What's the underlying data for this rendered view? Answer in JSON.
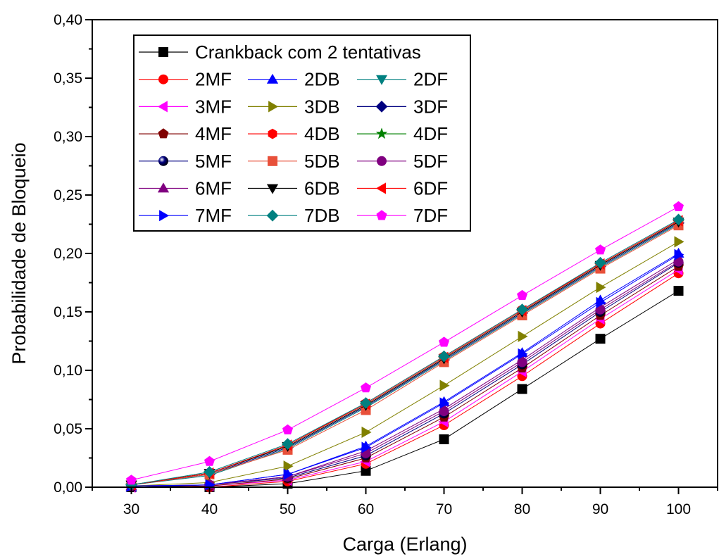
{
  "chart_data": {
    "type": "line",
    "xlabel": "Carga (Erlang)",
    "ylabel": "Probabilidade de Bloqueio",
    "xlim": [
      25,
      105
    ],
    "ylim": [
      0.0,
      0.4
    ],
    "x_ticks": [
      30,
      40,
      50,
      60,
      70,
      80,
      90,
      100
    ],
    "x_tick_labels": [
      "30",
      "40",
      "50",
      "60",
      "70",
      "80",
      "90",
      "100"
    ],
    "y_ticks": [
      0.0,
      0.05,
      0.1,
      0.15,
      0.2,
      0.25,
      0.3,
      0.35,
      0.4
    ],
    "y_tick_labels": [
      "0,00",
      "0,05",
      "0,10",
      "0,15",
      "0,20",
      "0,25",
      "0,30",
      "0,35",
      "0,40"
    ],
    "grid": false,
    "legend_position": "top-left",
    "x": [
      30,
      40,
      50,
      60,
      70,
      80,
      90,
      100
    ],
    "series": [
      {
        "name": "Crankback com 2 tentativas",
        "color": "#000000",
        "marker": "square",
        "values": [
          0.0,
          0.0,
          0.003,
          0.014,
          0.041,
          0.084,
          0.127,
          0.168
        ]
      },
      {
        "name": "2MF",
        "color": "#ff0000",
        "marker": "circle",
        "values": [
          0.0,
          0.0,
          0.005,
          0.02,
          0.053,
          0.095,
          0.14,
          0.183
        ]
      },
      {
        "name": "2DB",
        "color": "#0000ff",
        "marker": "triangle-up",
        "values": [
          0.0,
          0.002,
          0.011,
          0.035,
          0.073,
          0.115,
          0.16,
          0.2
        ]
      },
      {
        "name": "2DF",
        "color": "#008080",
        "marker": "triangle-down",
        "values": [
          0.002,
          0.01,
          0.033,
          0.068,
          0.108,
          0.148,
          0.188,
          0.225
        ]
      },
      {
        "name": "3MF",
        "color": "#ff00ff",
        "marker": "triangle-left",
        "values": [
          0.0,
          0.001,
          0.006,
          0.022,
          0.056,
          0.099,
          0.144,
          0.186
        ]
      },
      {
        "name": "3DB",
        "color": "#808000",
        "marker": "triangle-right",
        "values": [
          0.001,
          0.004,
          0.018,
          0.047,
          0.087,
          0.129,
          0.171,
          0.21
        ]
      },
      {
        "name": "3DF",
        "color": "#000080",
        "marker": "diamond",
        "values": [
          0.002,
          0.011,
          0.034,
          0.069,
          0.109,
          0.149,
          0.189,
          0.226
        ]
      },
      {
        "name": "4MF",
        "color": "#800000",
        "marker": "pentagon",
        "values": [
          0.0,
          0.001,
          0.007,
          0.025,
          0.06,
          0.102,
          0.147,
          0.189
        ]
      },
      {
        "name": "4DB",
        "color": "#ff0000",
        "marker": "hexagon",
        "values": [
          0.002,
          0.012,
          0.036,
          0.072,
          0.112,
          0.152,
          0.191,
          0.228
        ]
      },
      {
        "name": "4DF",
        "color": "#008000",
        "marker": "star",
        "values": [
          0.002,
          0.012,
          0.035,
          0.07,
          0.11,
          0.15,
          0.19,
          0.227
        ]
      },
      {
        "name": "5MF",
        "color": "#000080",
        "marker": "sphere",
        "values": [
          0.0,
          0.002,
          0.008,
          0.027,
          0.063,
          0.105,
          0.15,
          0.192
        ]
      },
      {
        "name": "5DB",
        "color": "#e8503a",
        "marker": "square",
        "values": [
          0.002,
          0.011,
          0.032,
          0.066,
          0.107,
          0.147,
          0.187,
          0.224
        ]
      },
      {
        "name": "5DF",
        "color": "#800080",
        "marker": "circle",
        "values": [
          0.001,
          0.002,
          0.009,
          0.029,
          0.065,
          0.107,
          0.152,
          0.193
        ]
      },
      {
        "name": "6MF",
        "color": "#800080",
        "marker": "triangle-up",
        "values": [
          0.001,
          0.002,
          0.009,
          0.031,
          0.067,
          0.109,
          0.154,
          0.195
        ]
      },
      {
        "name": "6DB",
        "color": "#000000",
        "marker": "triangle-down",
        "values": [
          0.002,
          0.012,
          0.035,
          0.07,
          0.11,
          0.15,
          0.19,
          0.227
        ]
      },
      {
        "name": "6DF",
        "color": "#ff0000",
        "marker": "triangle-left",
        "values": [
          0.002,
          0.012,
          0.036,
          0.071,
          0.111,
          0.151,
          0.191,
          0.228
        ]
      },
      {
        "name": "7MF",
        "color": "#0000ff",
        "marker": "triangle-right",
        "values": [
          0.001,
          0.002,
          0.011,
          0.034,
          0.072,
          0.114,
          0.158,
          0.199
        ]
      },
      {
        "name": "7DB",
        "color": "#008080",
        "marker": "diamond",
        "values": [
          0.002,
          0.013,
          0.037,
          0.072,
          0.112,
          0.152,
          0.192,
          0.229
        ]
      },
      {
        "name": "7DF",
        "color": "#ff00ff",
        "marker": "pentagon",
        "values": [
          0.006,
          0.022,
          0.049,
          0.085,
          0.124,
          0.164,
          0.203,
          0.24
        ]
      }
    ]
  }
}
